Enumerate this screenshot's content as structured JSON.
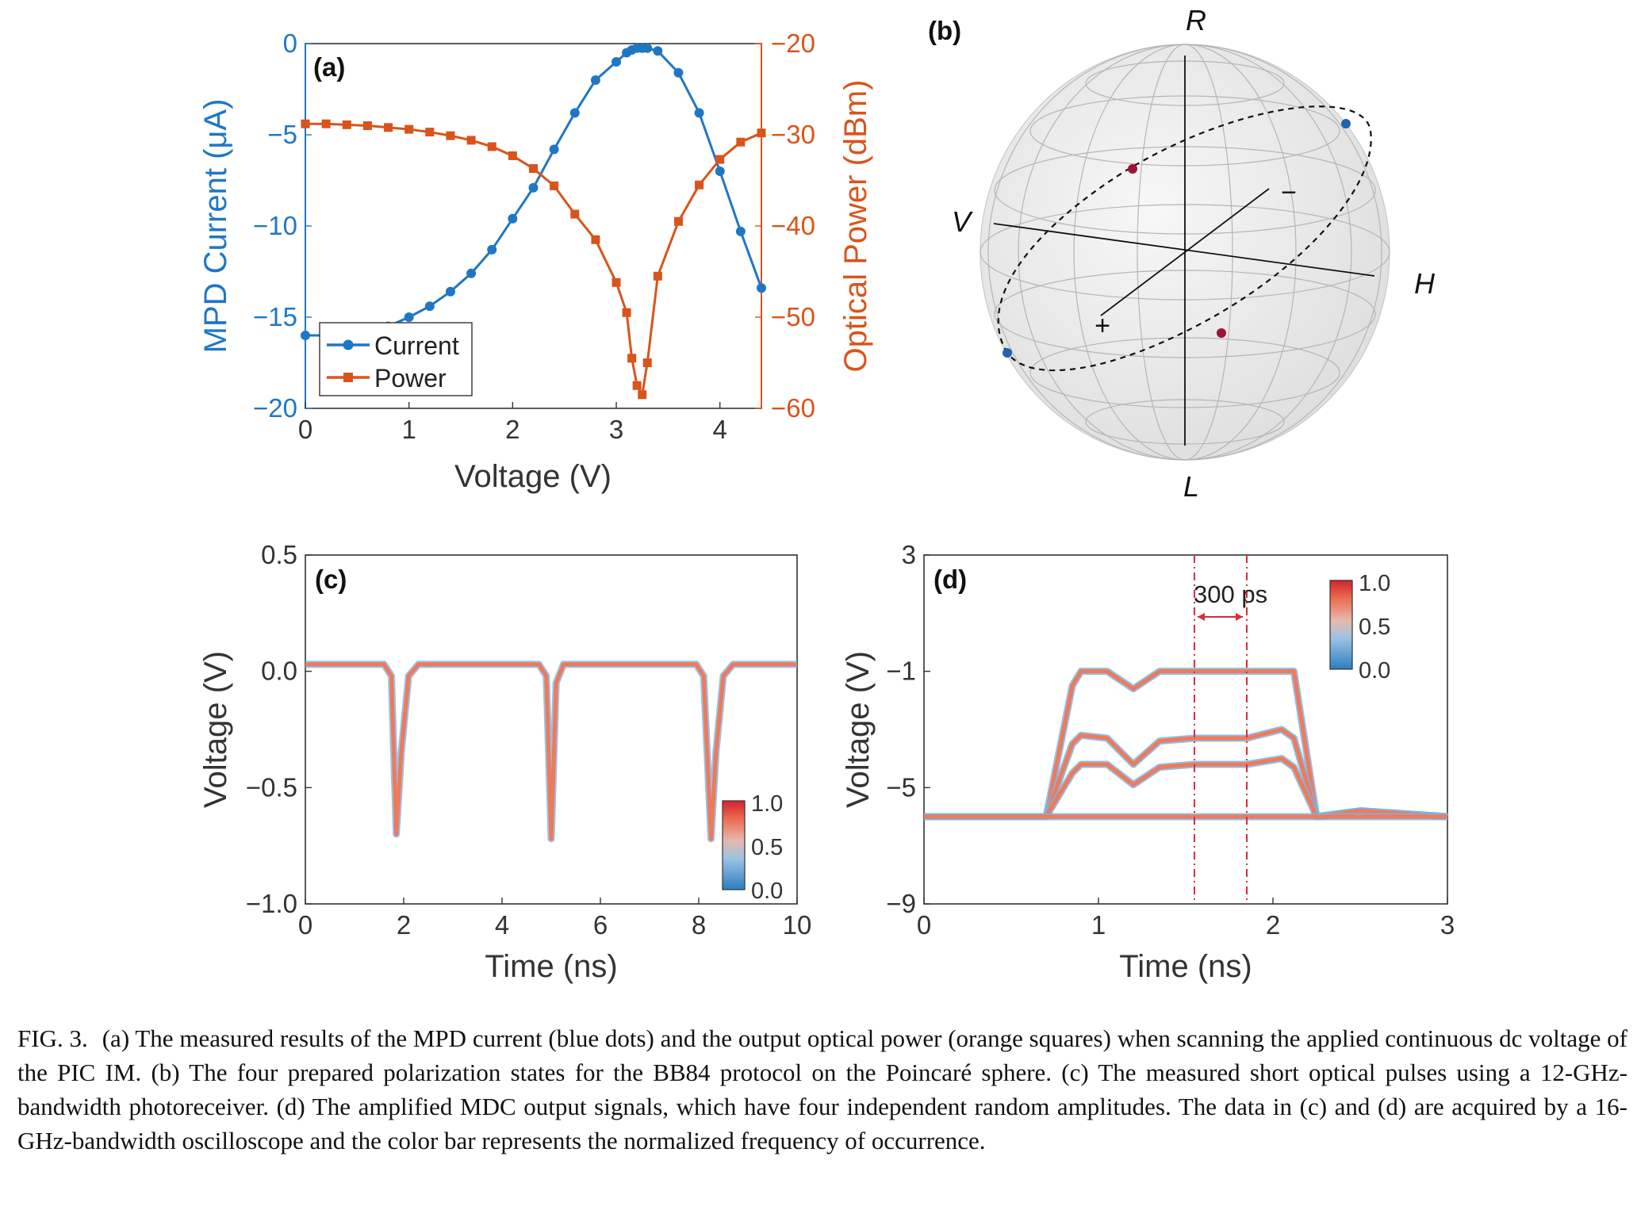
{
  "figure": {
    "colors": {
      "current": "#1f77c4",
      "power": "#d9541a",
      "axis": "#333333",
      "marker_blue": "#1f62b0",
      "marker_red": "#a0123a",
      "trace_hot": "#ef7a5a",
      "trace_cool": "#7fb2de",
      "cursor": "#dc2b3b"
    },
    "panel_a": {
      "label": "(a)",
      "ylabel_left": "MPD Current (μA)",
      "ylabel_right": "Optical Power (dBm)",
      "xlabel": "Voltage (V)",
      "legend": [
        "Current",
        "Power"
      ]
    },
    "panel_b": {
      "label": "(b)",
      "axis_labels": {
        "top": "R",
        "bottom": "L",
        "left": "V",
        "right": "H",
        "diag_front": "+",
        "diag_back": "−"
      }
    },
    "panel_c": {
      "label": "(c)",
      "ylabel": "Voltage (V)",
      "xlabel": "Time (ns)",
      "colorbar_ticks": [
        "1.0",
        "0.5",
        "0.0"
      ]
    },
    "panel_d": {
      "label": "(d)",
      "ylabel": "Voltage (V)",
      "xlabel": "Time (ns)",
      "annotation": "300 ps",
      "colorbar_ticks": [
        "1.0",
        "0.5",
        "0.0"
      ]
    }
  },
  "chart_data": [
    {
      "panel": "a",
      "type": "line",
      "x": [
        0,
        0.2,
        0.4,
        0.6,
        0.8,
        1.0,
        1.2,
        1.4,
        1.6,
        1.8,
        2.0,
        2.2,
        2.4,
        2.6,
        2.8,
        3.0,
        3.1,
        3.15,
        3.2,
        3.25,
        3.3,
        3.4,
        3.6,
        3.8,
        4.0,
        4.2,
        4.4
      ],
      "series": [
        {
          "name": "Current",
          "axis": "left",
          "marker": "circle",
          "values": [
            -16.0,
            -16.0,
            -15.9,
            -15.7,
            -15.5,
            -15.0,
            -14.4,
            -13.6,
            -12.6,
            -11.3,
            -9.6,
            -7.9,
            -5.8,
            -3.8,
            -2.0,
            -1.0,
            -0.5,
            -0.35,
            -0.25,
            -0.25,
            -0.25,
            -0.4,
            -1.6,
            -3.8,
            -7.0,
            -10.3,
            -13.4
          ]
        },
        {
          "name": "Power",
          "axis": "right",
          "marker": "square",
          "values": [
            -28.8,
            -28.8,
            -28.9,
            -29.0,
            -29.2,
            -29.4,
            -29.7,
            -30.1,
            -30.6,
            -31.3,
            -32.3,
            -33.7,
            -35.6,
            -38.7,
            -41.5,
            -46.2,
            -49.5,
            -54.5,
            -57.5,
            -58.5,
            -55.0,
            -45.5,
            -39.5,
            -35.5,
            -32.7,
            -30.8,
            -29.8
          ]
        }
      ],
      "xlabel": "Voltage (V)",
      "ylabel": "MPD Current (μA)",
      "ylabel_right": "Optical Power (dBm)",
      "xlim": [
        0,
        4.4
      ],
      "ylim": [
        -20,
        0
      ],
      "ylim_right": [
        -60,
        -20
      ],
      "xticks": [
        "0",
        "1",
        "2",
        "3",
        "4"
      ],
      "yticks": [
        "0",
        "−5",
        "−10",
        "−15",
        "−20"
      ],
      "yticks_right": [
        "−20",
        "−30",
        "−40",
        "−50",
        "−60"
      ],
      "legend_position": "bottom-left"
    },
    {
      "panel": "c",
      "type": "line",
      "x": [
        0,
        1.6,
        1.75,
        1.85,
        1.95,
        2.1,
        2.3,
        4.75,
        4.9,
        5.0,
        5.1,
        5.25,
        7.95,
        8.1,
        8.25,
        8.35,
        8.5,
        8.7,
        10
      ],
      "series": [
        {
          "values": [
            0.03,
            0.03,
            -0.02,
            -0.7,
            -0.35,
            -0.02,
            0.03,
            0.03,
            -0.02,
            -0.72,
            -0.05,
            0.03,
            0.03,
            -0.02,
            -0.72,
            -0.35,
            -0.02,
            0.03,
            0.03
          ]
        }
      ],
      "xlabel": "Time (ns)",
      "ylabel": "Voltage (V)",
      "xlim": [
        0,
        10
      ],
      "ylim": [
        -1.0,
        0.5
      ],
      "xticks": [
        "0",
        "2",
        "4",
        "6",
        "8",
        "10"
      ],
      "yticks": [
        "0.5",
        "0.0",
        "−0.5",
        "−1.0"
      ],
      "colorbar": [
        0.0,
        1.0
      ]
    },
    {
      "panel": "d",
      "type": "line",
      "x": [
        0,
        0.7,
        0.85,
        0.9,
        1.05,
        1.2,
        1.35,
        1.55,
        1.85,
        2.05,
        2.12,
        2.25,
        2.5,
        3.0
      ],
      "series": [
        {
          "values": [
            -6.0,
            -6.0,
            -1.5,
            -1.0,
            -1.0,
            -1.6,
            -1.0,
            -1.0,
            -1.0,
            -1.0,
            -1.0,
            -6.0,
            -5.8,
            -6.0
          ]
        },
        {
          "values": [
            -6.0,
            -6.0,
            -3.5,
            -3.2,
            -3.3,
            -4.2,
            -3.4,
            -3.3,
            -3.3,
            -3.0,
            -3.3,
            -6.0,
            -5.8,
            -6.0
          ]
        },
        {
          "values": [
            -6.0,
            -6.0,
            -4.5,
            -4.2,
            -4.2,
            -4.9,
            -4.3,
            -4.2,
            -4.2,
            -4.0,
            -4.3,
            -6.0,
            -5.8,
            -6.0
          ]
        },
        {
          "values": [
            -6.0,
            -6.0,
            -6.0,
            -6.0,
            -6.0,
            -6.0,
            -6.0,
            -6.0,
            -6.0,
            -6.0,
            -6.0,
            -6.0,
            -6.0,
            -6.0
          ]
        }
      ],
      "vlines": [
        1.55,
        1.85
      ],
      "xlabel": "Time (ns)",
      "ylabel": "Voltage (V)",
      "xlim": [
        0,
        3
      ],
      "ylim": [
        -9,
        3
      ],
      "xticks": [
        "0",
        "1",
        "2",
        "3"
      ],
      "yticks": [
        "3",
        "−1",
        "−5",
        "−9"
      ],
      "colorbar": [
        0.0,
        1.0
      ]
    }
  ],
  "caption": {
    "label": "FIG. 3.",
    "text": "(a) The measured results of the MPD current (blue dots) and the output optical power (orange squares) when scanning the applied continuous dc voltage of the PIC IM. (b) The four prepared polarization states for the BB84 protocol on the Poincaré sphere. (c) The measured short optical pulses using a 12-GHz-bandwidth photoreceiver. (d) The amplified MDC output signals, which have four independent random amplitudes. The data in (c) and (d) are acquired by a 16-GHz-bandwidth oscilloscope and the color bar represents the normalized frequency of occurrence."
  }
}
